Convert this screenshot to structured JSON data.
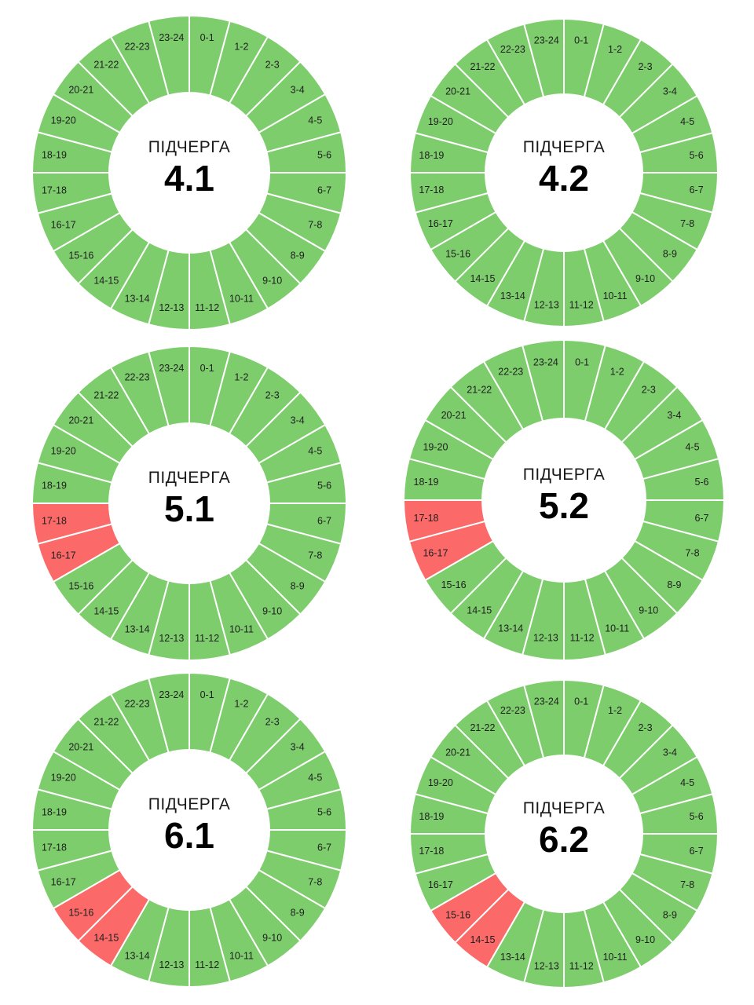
{
  "hour_labels": [
    "0-1",
    "1-2",
    "2-3",
    "3-4",
    "4-5",
    "5-6",
    "6-7",
    "7-8",
    "8-9",
    "9-10",
    "10-11",
    "11-12",
    "12-13",
    "13-14",
    "14-15",
    "15-16",
    "16-17",
    "17-18",
    "18-19",
    "19-20",
    "20-21",
    "21-22",
    "22-23",
    "23-24"
  ],
  "colors": {
    "on": "#7dcd6c",
    "off": "#fb6a68",
    "divider": "#ffffff",
    "text": "#1f1f1f"
  },
  "wheels": [
    {
      "title": "ПІДЧЕРГА",
      "number": "4.1",
      "off_hours": []
    },
    {
      "title": "ПІДЧЕРГА",
      "number": "4.2",
      "off_hours": []
    },
    {
      "title": "ПІДЧЕРГА",
      "number": "5.1",
      "off_hours": [
        16,
        17
      ]
    },
    {
      "title": "ПІДЧЕРГА",
      "number": "5.2",
      "off_hours": [
        16,
        17
      ]
    },
    {
      "title": "ПІДЧЕРГА",
      "number": "6.1",
      "off_hours": [
        14,
        15
      ]
    },
    {
      "title": "ПІДЧЕРГА",
      "number": "6.2",
      "off_hours": [
        14,
        15
      ]
    }
  ]
}
